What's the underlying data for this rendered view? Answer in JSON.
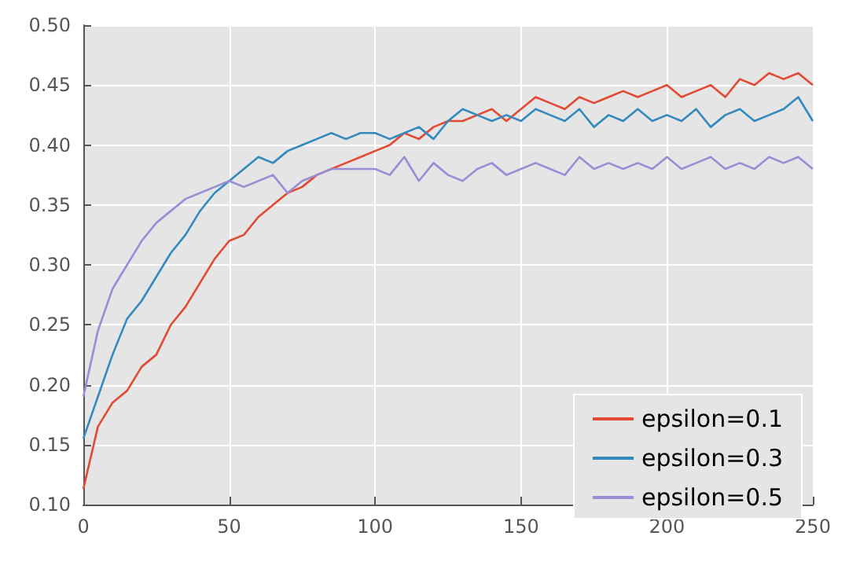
{
  "chart_data": {
    "type": "line",
    "x": [
      0,
      5,
      10,
      15,
      20,
      25,
      30,
      35,
      40,
      45,
      50,
      55,
      60,
      65,
      70,
      75,
      80,
      85,
      90,
      95,
      100,
      105,
      110,
      115,
      120,
      125,
      130,
      135,
      140,
      145,
      150,
      155,
      160,
      165,
      170,
      175,
      180,
      185,
      190,
      195,
      200,
      205,
      210,
      215,
      220,
      225,
      230,
      235,
      240,
      245,
      250
    ],
    "series": [
      {
        "name": "epsilon=0.1",
        "color": "#e24a33",
        "values": [
          0.113,
          0.165,
          0.185,
          0.195,
          0.215,
          0.225,
          0.25,
          0.265,
          0.285,
          0.305,
          0.32,
          0.325,
          0.34,
          0.35,
          0.36,
          0.365,
          0.375,
          0.38,
          0.385,
          0.39,
          0.395,
          0.4,
          0.41,
          0.405,
          0.415,
          0.42,
          0.42,
          0.425,
          0.43,
          0.42,
          0.43,
          0.44,
          0.435,
          0.43,
          0.44,
          0.435,
          0.44,
          0.445,
          0.44,
          0.445,
          0.45,
          0.44,
          0.445,
          0.45,
          0.44,
          0.455,
          0.45,
          0.46,
          0.455,
          0.46,
          0.45
        ]
      },
      {
        "name": "epsilon=0.3",
        "color": "#348abd",
        "values": [
          0.155,
          0.19,
          0.225,
          0.255,
          0.27,
          0.29,
          0.31,
          0.325,
          0.345,
          0.36,
          0.37,
          0.38,
          0.39,
          0.385,
          0.395,
          0.4,
          0.405,
          0.41,
          0.405,
          0.41,
          0.41,
          0.405,
          0.41,
          0.415,
          0.405,
          0.42,
          0.43,
          0.425,
          0.42,
          0.425,
          0.42,
          0.43,
          0.425,
          0.42,
          0.43,
          0.415,
          0.425,
          0.42,
          0.43,
          0.42,
          0.425,
          0.42,
          0.43,
          0.415,
          0.425,
          0.43,
          0.42,
          0.425,
          0.43,
          0.44,
          0.42
        ]
      },
      {
        "name": "epsilon=0.5",
        "color": "#988ed5",
        "values": [
          0.19,
          0.245,
          0.28,
          0.3,
          0.32,
          0.335,
          0.345,
          0.355,
          0.36,
          0.365,
          0.37,
          0.365,
          0.37,
          0.375,
          0.36,
          0.37,
          0.375,
          0.38,
          0.38,
          0.38,
          0.38,
          0.375,
          0.39,
          0.37,
          0.385,
          0.375,
          0.37,
          0.38,
          0.385,
          0.375,
          0.38,
          0.385,
          0.38,
          0.375,
          0.39,
          0.38,
          0.385,
          0.38,
          0.385,
          0.38,
          0.39,
          0.38,
          0.385,
          0.39,
          0.38,
          0.385,
          0.38,
          0.39,
          0.385,
          0.39,
          0.38
        ]
      }
    ],
    "xlim": [
      0,
      250
    ],
    "xticks": [
      0,
      50,
      100,
      150,
      200,
      250
    ],
    "ylim": [
      0.1,
      0.5
    ],
    "yticks": [
      {
        "value": 0.1,
        "label": "0.10"
      },
      0.15,
      {
        "value": 0.2,
        "label": "0.20"
      },
      0.25,
      {
        "value": 0.3,
        "label": "0.30"
      },
      0.35,
      {
        "value": 0.4,
        "label": "0.40"
      },
      0.45,
      {
        "value": 0.5,
        "label": "0.50"
      }
    ],
    "grid": true,
    "legend": "bottom right",
    "marker": "none",
    "line_style": "solid"
  }
}
